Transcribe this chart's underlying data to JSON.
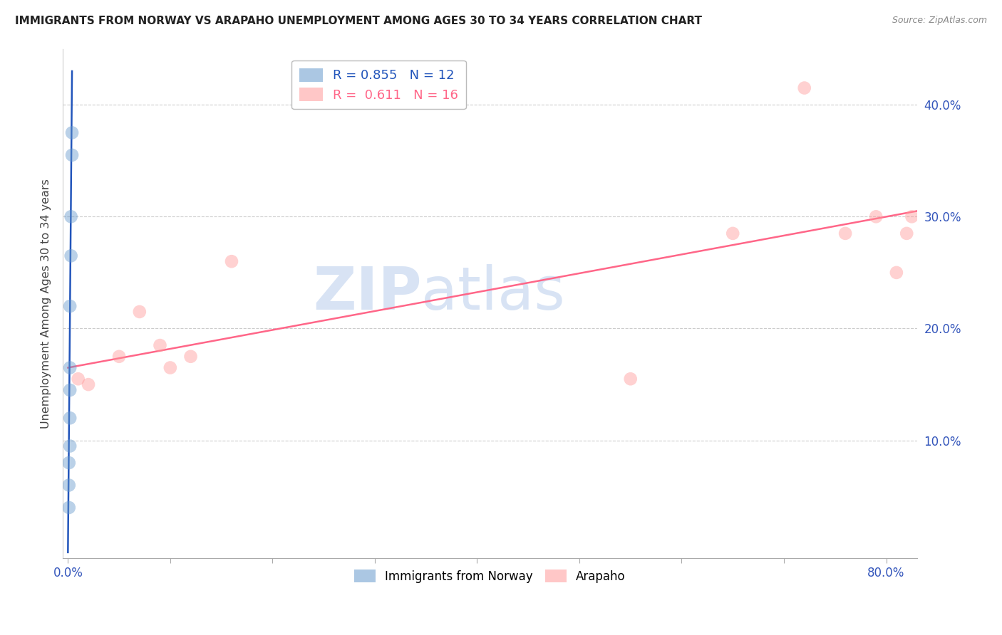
{
  "title": "IMMIGRANTS FROM NORWAY VS ARAPAHO UNEMPLOYMENT AMONG AGES 30 TO 34 YEARS CORRELATION CHART",
  "source": "Source: ZipAtlas.com",
  "ylabel": "Unemployment Among Ages 30 to 34 years",
  "xlim": [
    -0.005,
    0.83
  ],
  "ylim": [
    -0.005,
    0.45
  ],
  "norway_R": "0.855",
  "norway_N": "12",
  "arapaho_R": "0.611",
  "arapaho_N": "16",
  "norway_color": "#6699CC",
  "arapaho_color": "#FF9999",
  "norway_line_color": "#2255BB",
  "arapaho_line_color": "#FF6688",
  "watermark_zip": "ZIP",
  "watermark_atlas": "atlas",
  "norway_x": [
    0.001,
    0.001,
    0.001,
    0.002,
    0.002,
    0.002,
    0.002,
    0.002,
    0.003,
    0.003,
    0.004,
    0.004
  ],
  "norway_y": [
    0.04,
    0.06,
    0.08,
    0.095,
    0.12,
    0.145,
    0.165,
    0.22,
    0.265,
    0.3,
    0.355,
    0.375
  ],
  "arapaho_x": [
    0.01,
    0.02,
    0.05,
    0.07,
    0.09,
    0.1,
    0.12,
    0.16,
    0.55,
    0.65,
    0.72,
    0.76,
    0.79,
    0.81,
    0.82,
    0.825
  ],
  "arapaho_y": [
    0.155,
    0.15,
    0.175,
    0.215,
    0.185,
    0.165,
    0.175,
    0.26,
    0.155,
    0.285,
    0.415,
    0.285,
    0.3,
    0.25,
    0.285,
    0.3
  ],
  "norway_trend_x": [
    0.0,
    0.004
  ],
  "norway_trend_y": [
    0.0,
    0.43
  ],
  "arapaho_trend_x": [
    0.0,
    0.83
  ],
  "arapaho_trend_y": [
    0.165,
    0.305
  ],
  "xtick_positions": [
    0.0,
    0.1,
    0.2,
    0.3,
    0.4,
    0.5,
    0.6,
    0.7,
    0.8
  ],
  "ytick_positions": [
    0.1,
    0.2,
    0.3,
    0.4
  ],
  "ytick_labels": [
    "10.0%",
    "20.0%",
    "30.0%",
    "40.0%"
  ]
}
